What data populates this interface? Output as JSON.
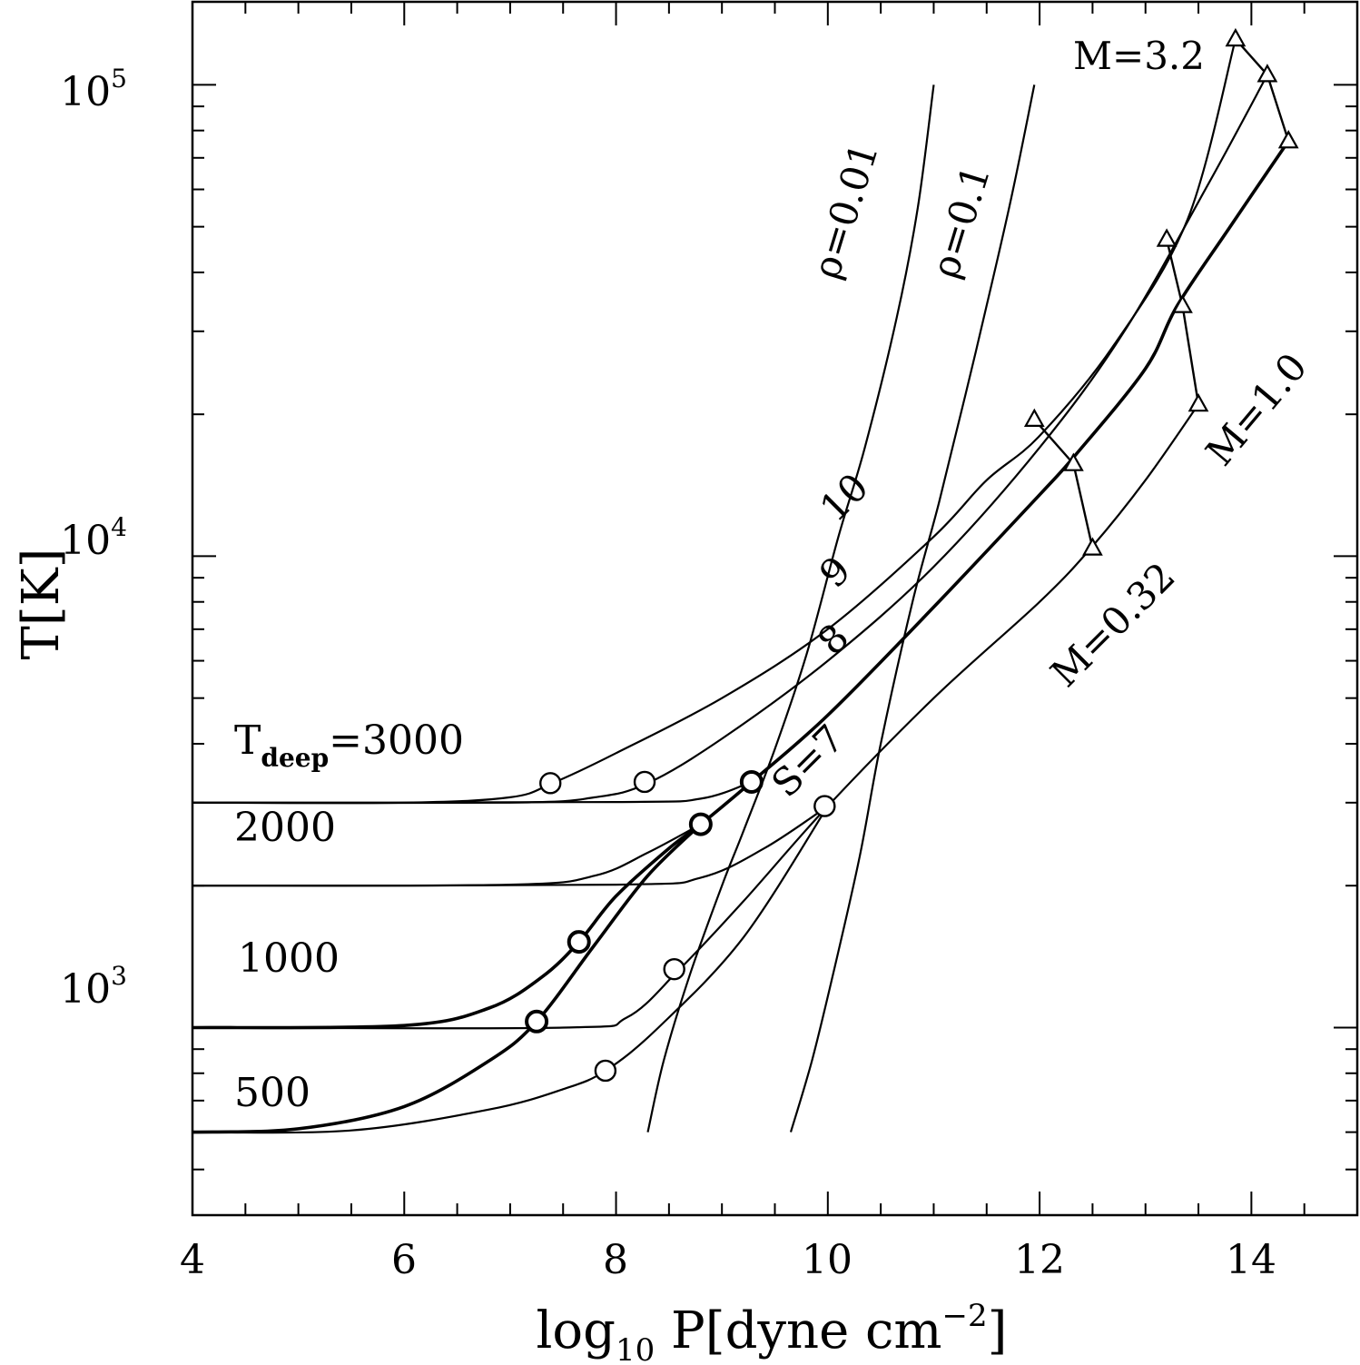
{
  "chart_data": {
    "type": "line",
    "title": "",
    "xlabel": "log",
    "xlabel_sub": "10",
    "xlabel_rest": " P[dyne cm",
    "xlabel_sup": "−2",
    "xlabel_end": "]",
    "ylabel": "T[K]",
    "xlim": [
      4,
      15
    ],
    "ylim": [
      400,
      150000
    ],
    "yscale": "log",
    "xticks": [
      4,
      6,
      8,
      10,
      12,
      14
    ],
    "xtick_labels": [
      "4",
      "6",
      "8",
      "10",
      "12",
      "14"
    ],
    "yticks": [
      {
        "base": "10",
        "exp": "3",
        "value": 1000
      },
      {
        "base": "10",
        "exp": "4",
        "value": 10000
      },
      {
        "base": "10",
        "exp": "5",
        "value": 100000
      }
    ],
    "grid": false,
    "series": [
      {
        "id": "T3000-S10",
        "bold": false,
        "points": [
          [
            4,
            3000
          ],
          [
            6,
            3000
          ],
          [
            7,
            3080
          ],
          [
            7.4,
            3300
          ],
          [
            8,
            3820
          ],
          [
            9,
            5000
          ],
          [
            10,
            7000
          ],
          [
            11,
            11000
          ],
          [
            11.5,
            14500
          ],
          [
            12,
            18000
          ],
          [
            12.7,
            28000
          ],
          [
            13.4,
            52000
          ],
          [
            13.85,
            125000
          ]
        ]
      },
      {
        "id": "T3000-S9",
        "bold": false,
        "points": [
          [
            4,
            3000
          ],
          [
            7,
            3000
          ],
          [
            7.8,
            3080
          ],
          [
            8.3,
            3300
          ],
          [
            9,
            4100
          ],
          [
            10,
            6000
          ],
          [
            11,
            9500
          ],
          [
            12,
            17000
          ],
          [
            12.8,
            30000
          ],
          [
            13.6,
            62000
          ],
          [
            14.15,
            105000
          ]
        ]
      },
      {
        "id": "T3000-S8",
        "bold": false,
        "points": [
          [
            4,
            3000
          ],
          [
            8,
            3010
          ],
          [
            8.8,
            3060
          ],
          [
            9.28,
            3320
          ]
        ]
      },
      {
        "id": "T2000-S8",
        "bold": false,
        "points": [
          [
            4,
            2000
          ],
          [
            7,
            2010
          ],
          [
            7.8,
            2100
          ],
          [
            8.3,
            2350
          ],
          [
            8.8,
            2700
          ]
        ]
      },
      {
        "id": "T2000-S7",
        "bold": false,
        "points": [
          [
            4,
            2000
          ],
          [
            8,
            2010
          ],
          [
            8.8,
            2080
          ],
          [
            9.4,
            2400
          ],
          [
            10,
            2950
          ]
        ]
      },
      {
        "id": "T1000-S8",
        "bold": true,
        "points": [
          [
            4,
            1000
          ],
          [
            6,
            1010
          ],
          [
            6.8,
            1100
          ],
          [
            7.3,
            1280
          ],
          [
            7.65,
            1520
          ],
          [
            8,
            1900
          ],
          [
            8.5,
            2400
          ],
          [
            8.8,
            2700
          ],
          [
            9.28,
            3320
          ],
          [
            10,
            4600
          ],
          [
            11,
            7800
          ],
          [
            12,
            13500
          ],
          [
            12.35,
            16500
          ],
          [
            13,
            25000
          ],
          [
            13.3,
            34000
          ],
          [
            13.8,
            50000
          ],
          [
            14.35,
            76000
          ]
        ]
      },
      {
        "id": "T1000-S7",
        "bold": false,
        "points": [
          [
            4,
            1000
          ],
          [
            7.5,
            1000
          ],
          [
            8.1,
            1050
          ],
          [
            8.6,
            1330
          ],
          [
            9.2,
            1850
          ],
          [
            10,
            2950
          ],
          [
            11,
            5000
          ],
          [
            12,
            8000
          ],
          [
            12.5,
            10500
          ],
          [
            13,
            14500
          ],
          [
            13.5,
            21000
          ]
        ]
      },
      {
        "id": "T500-S8",
        "bold": true,
        "points": [
          [
            4,
            600
          ],
          [
            5,
            610
          ],
          [
            6,
            680
          ],
          [
            6.8,
            850
          ],
          [
            7.25,
            1030
          ],
          [
            7.8,
            1500
          ],
          [
            8.3,
            2100
          ],
          [
            8.8,
            2700
          ]
        ]
      },
      {
        "id": "T500-S7",
        "bold": false,
        "points": [
          [
            4,
            600
          ],
          [
            5.5,
            605
          ],
          [
            6.8,
            670
          ],
          [
            7.5,
            740
          ],
          [
            7.9,
            810
          ],
          [
            8.4,
            1000
          ],
          [
            9.2,
            1550
          ],
          [
            10,
            2950
          ]
        ]
      },
      {
        "id": "rho-0.01",
        "bold": false,
        "points": [
          [
            8.3,
            600
          ],
          [
            8.45,
            850
          ],
          [
            8.7,
            1300
          ],
          [
            9.0,
            2000
          ],
          [
            9.2,
            2600
          ],
          [
            9.5,
            3900
          ],
          [
            9.8,
            6200
          ],
          [
            10.1,
            11000
          ],
          [
            10.35,
            17000
          ],
          [
            10.65,
            32000
          ],
          [
            10.85,
            55000
          ],
          [
            11.0,
            100000
          ]
        ]
      },
      {
        "id": "rho-0.1",
        "bold": false,
        "points": [
          [
            9.65,
            600
          ],
          [
            9.85,
            850
          ],
          [
            10.05,
            1300
          ],
          [
            10.3,
            2300
          ],
          [
            10.5,
            4000
          ],
          [
            10.8,
            8000
          ],
          [
            11.05,
            13000
          ],
          [
            11.3,
            22000
          ],
          [
            11.55,
            38000
          ],
          [
            11.75,
            60000
          ],
          [
            11.95,
            100000
          ]
        ]
      }
    ],
    "circle_markers": [
      {
        "x": 7.38,
        "y": 3300,
        "bold": false
      },
      {
        "x": 8.27,
        "y": 3320,
        "bold": false
      },
      {
        "x": 9.28,
        "y": 3320,
        "bold": true
      },
      {
        "x": 8.8,
        "y": 2700,
        "bold": true
      },
      {
        "x": 9.97,
        "y": 2950,
        "bold": false
      },
      {
        "x": 7.65,
        "y": 1520,
        "bold": true
      },
      {
        "x": 8.55,
        "y": 1330,
        "bold": false
      },
      {
        "x": 7.25,
        "y": 1030,
        "bold": true
      },
      {
        "x": 7.9,
        "y": 810,
        "bold": false
      }
    ],
    "triangle_markers": [
      {
        "x": 13.85,
        "y": 125000
      },
      {
        "x": 14.15,
        "y": 105000
      },
      {
        "x": 14.35,
        "y": 76000
      },
      {
        "x": 13.2,
        "y": 47000
      },
      {
        "x": 13.35,
        "y": 34000
      },
      {
        "x": 13.5,
        "y": 21000
      },
      {
        "x": 11.95,
        "y": 19500
      },
      {
        "x": 12.32,
        "y": 15700
      },
      {
        "x": 12.5,
        "y": 10400
      }
    ],
    "mass_connectors": [
      {
        "name": "M=3.2",
        "points": [
          [
            13.85,
            125000
          ],
          [
            14.15,
            105000
          ],
          [
            14.35,
            76000
          ]
        ]
      },
      {
        "name": "M=1.0",
        "points": [
          [
            13.2,
            47000
          ],
          [
            13.35,
            34000
          ],
          [
            13.5,
            21000
          ]
        ]
      },
      {
        "name": "M=0.32",
        "points": [
          [
            11.95,
            19500
          ],
          [
            12.32,
            15700
          ],
          [
            12.5,
            10400
          ]
        ]
      }
    ],
    "annotations": {
      "tdeep_main": "T",
      "tdeep_sub": "deep",
      "tdeep_value": "=3000",
      "t2000": "2000",
      "t1000": "1000",
      "t500": "500",
      "rho001": "ρ=0.01",
      "rho01": "ρ=0.1",
      "s10": "10",
      "s9": "9",
      "s8": "8",
      "s7": "S=7",
      "m32": "M=3.2",
      "m10": "M=1.0",
      "m032": "M=0.32"
    }
  }
}
